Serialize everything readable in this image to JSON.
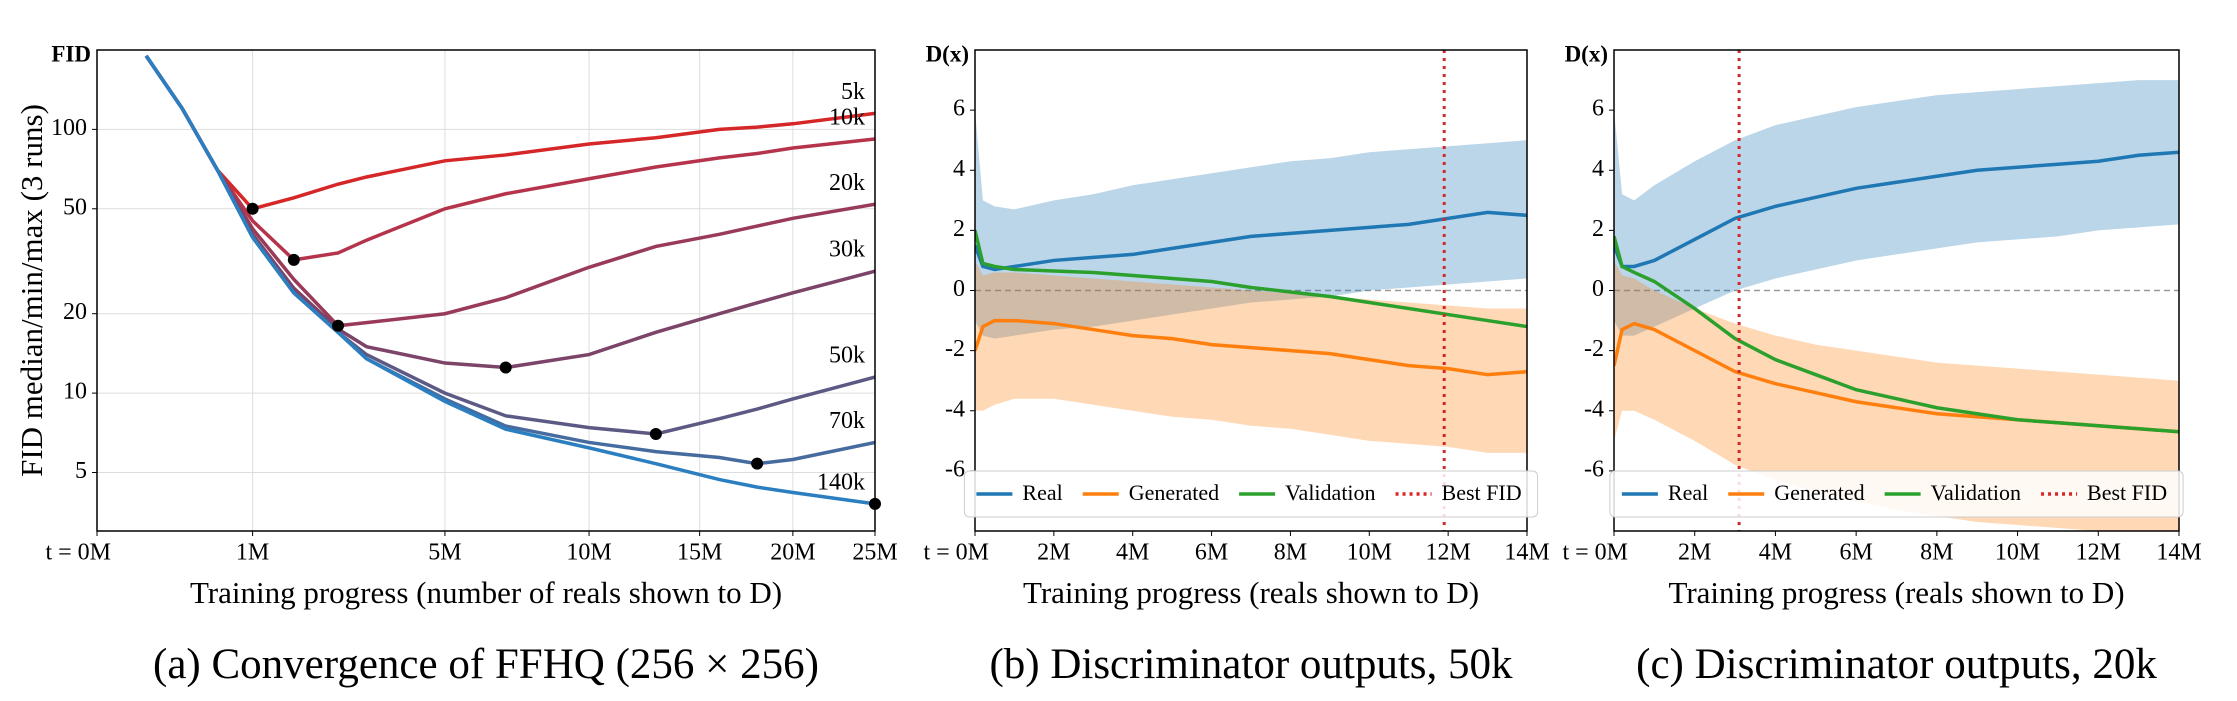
{
  "chart_data": [
    {
      "type": "line",
      "title": "(a) Convergence of FFHQ (256 × 256)",
      "ylabel": "FID median/min/max (3 runs)",
      "xlabel": "Training progress (number of reals shown to D)",
      "y_unit": "FID",
      "xscale": "sqrt",
      "yscale": "log",
      "grid": true,
      "end_labels": true,
      "xlim": [
        0,
        25
      ],
      "ylim": [
        3,
        200
      ],
      "xticks": [
        {
          "value": 0,
          "label": "t = 0M"
        },
        {
          "value": 1,
          "label": "1M"
        },
        {
          "value": 5,
          "label": "5M"
        },
        {
          "value": 10,
          "label": "10M"
        },
        {
          "value": 15,
          "label": "15M"
        },
        {
          "value": 20,
          "label": "20M"
        },
        {
          "value": 25,
          "label": "25M"
        }
      ],
      "yticks": [
        5,
        10,
        20,
        50,
        100
      ],
      "x": [
        0.1,
        0.3,
        0.6,
        1,
        1.6,
        2.4,
        3,
        5,
        6.9,
        10,
        12.9,
        16,
        18,
        20,
        25
      ],
      "series": [
        {
          "name": "5k",
          "color": "#d62728",
          "values": [
            190,
            120,
            70,
            50,
            55,
            62,
            66,
            76,
            80,
            88,
            93,
            100,
            102,
            105,
            115
          ]
        },
        {
          "name": "10k",
          "color": "#b5344c",
          "values": [
            190,
            120,
            70,
            45,
            32,
            34,
            38,
            50,
            57,
            65,
            72,
            78,
            81,
            85,
            92
          ]
        },
        {
          "name": "20k",
          "color": "#993a58",
          "values": [
            190,
            120,
            70,
            42,
            27,
            18,
            18.5,
            20,
            23,
            30,
            36,
            40,
            43,
            46,
            52
          ]
        },
        {
          "name": "30k",
          "color": "#7c4468",
          "values": [
            190,
            120,
            70,
            40,
            25,
            17.5,
            15,
            13,
            12.5,
            14,
            17,
            20,
            22,
            24,
            29
          ]
        },
        {
          "name": "50k",
          "color": "#5c5a84",
          "values": [
            190,
            120,
            70,
            39,
            24,
            17,
            14,
            10,
            8.2,
            7.4,
            7,
            8,
            8.7,
            9.5,
            11.5
          ]
        },
        {
          "name": "70k",
          "color": "#466b9e",
          "values": [
            190,
            120,
            70,
            39,
            24,
            17,
            13.5,
            9.5,
            7.5,
            6.5,
            6,
            5.7,
            5.4,
            5.6,
            6.5
          ]
        },
        {
          "name": "140k",
          "color": "#2b7fc1",
          "values": [
            190,
            120,
            70,
            39,
            24,
            17,
            13.5,
            9.3,
            7.3,
            6.2,
            5.4,
            4.7,
            4.4,
            4.2,
            3.8
          ]
        }
      ],
      "markers": [
        {
          "x": 1,
          "y": 50
        },
        {
          "x": 1.6,
          "y": 32
        },
        {
          "x": 2.4,
          "y": 18
        },
        {
          "x": 6.9,
          "y": 12.5
        },
        {
          "x": 12.9,
          "y": 7
        },
        {
          "x": 18,
          "y": 5.4
        },
        {
          "x": 25,
          "y": 3.8
        }
      ]
    },
    {
      "type": "line",
      "title": "(b) Discriminator outputs, 50k",
      "xlabel": "Training progress (reals shown to D)",
      "y_unit": "D(x)",
      "xscale": "linear",
      "yscale": "linear",
      "grid": false,
      "legend": "lower center",
      "hline": 0,
      "xlim": [
        0,
        14
      ],
      "ylim": [
        -8,
        8
      ],
      "xticks": [
        {
          "value": 0,
          "label": "t = 0M"
        },
        {
          "value": 2,
          "label": "2M"
        },
        {
          "value": 4,
          "label": "4M"
        },
        {
          "value": 6,
          "label": "6M"
        },
        {
          "value": 8,
          "label": "8M"
        },
        {
          "value": 10,
          "label": "10M"
        },
        {
          "value": 12,
          "label": "12M"
        },
        {
          "value": 14,
          "label": "14M"
        }
      ],
      "yticks": [
        -6,
        -4,
        -2,
        0,
        2,
        4,
        6
      ],
      "x": [
        0,
        0.2,
        0.5,
        1,
        2,
        3,
        4,
        5,
        6,
        7,
        8,
        9,
        10,
        11,
        12,
        13,
        14
      ],
      "series": [
        {
          "name": "Real",
          "color": "#1f77b4",
          "values": [
            1.5,
            0.8,
            0.7,
            0.8,
            1.0,
            1.1,
            1.2,
            1.4,
            1.6,
            1.8,
            1.9,
            2.0,
            2.1,
            2.2,
            2.4,
            2.6,
            2.5
          ],
          "upper": [
            6,
            3,
            2.8,
            2.7,
            3,
            3.2,
            3.5,
            3.7,
            3.9,
            4.1,
            4.3,
            4.4,
            4.6,
            4.7,
            4.8,
            4.9,
            5.0
          ],
          "lower": [
            -1,
            -1.5,
            -1.6,
            -1.5,
            -1.3,
            -1.2,
            -1.0,
            -0.8,
            -0.6,
            -0.4,
            -0.3,
            -0.2,
            0,
            0.1,
            0.2,
            0.3,
            0.4
          ]
        },
        {
          "name": "Generated",
          "color": "#ff7f0e",
          "values": [
            -2,
            -1.2,
            -1.0,
            -1.0,
            -1.1,
            -1.3,
            -1.5,
            -1.6,
            -1.8,
            -1.9,
            -2.0,
            -2.1,
            -2.3,
            -2.5,
            -2.6,
            -2.8,
            -2.7
          ],
          "upper": [
            1,
            0.5,
            0.6,
            0.6,
            0.5,
            0.4,
            0.3,
            0.2,
            0.1,
            0,
            -0.1,
            -0.2,
            -0.3,
            -0.4,
            -0.5,
            -0.6,
            -0.6
          ],
          "lower": [
            -4,
            -4,
            -3.8,
            -3.6,
            -3.6,
            -3.8,
            -4.0,
            -4.2,
            -4.3,
            -4.5,
            -4.6,
            -4.8,
            -5.0,
            -5.1,
            -5.2,
            -5.4,
            -5.4
          ]
        },
        {
          "name": "Validation",
          "color": "#2ca02c",
          "values": [
            2.0,
            0.9,
            0.8,
            0.7,
            0.65,
            0.6,
            0.5,
            0.4,
            0.3,
            0.1,
            -0.05,
            -0.2,
            -0.4,
            -0.6,
            -0.8,
            -1.0,
            -1.2
          ]
        }
      ],
      "vline": {
        "name": "Best FID",
        "x": 11.9,
        "color": "#d62728"
      }
    },
    {
      "type": "line",
      "title": "(c) Discriminator outputs, 20k",
      "xlabel": "Training progress (reals shown to D)",
      "y_unit": "D(x)",
      "xscale": "linear",
      "yscale": "linear",
      "grid": false,
      "legend": "lower center",
      "hline": 0,
      "xlim": [
        0,
        14
      ],
      "ylim": [
        -8,
        8
      ],
      "xticks": [
        {
          "value": 0,
          "label": "t = 0M"
        },
        {
          "value": 2,
          "label": "2M"
        },
        {
          "value": 4,
          "label": "4M"
        },
        {
          "value": 6,
          "label": "6M"
        },
        {
          "value": 8,
          "label": "8M"
        },
        {
          "value": 10,
          "label": "10M"
        },
        {
          "value": 12,
          "label": "12M"
        },
        {
          "value": 14,
          "label": "14M"
        }
      ],
      "yticks": [
        -6,
        -4,
        -2,
        0,
        2,
        4,
        6
      ],
      "x": [
        0,
        0.2,
        0.5,
        1,
        2,
        3,
        4,
        5,
        6,
        7,
        8,
        9,
        10,
        11,
        12,
        13,
        14
      ],
      "series": [
        {
          "name": "Real",
          "color": "#1f77b4",
          "values": [
            1.5,
            0.8,
            0.8,
            1.0,
            1.7,
            2.4,
            2.8,
            3.1,
            3.4,
            3.6,
            3.8,
            4.0,
            4.1,
            4.2,
            4.3,
            4.5,
            4.6
          ],
          "upper": [
            6,
            3.2,
            3,
            3.5,
            4.3,
            5,
            5.5,
            5.8,
            6.1,
            6.3,
            6.5,
            6.6,
            6.7,
            6.8,
            6.9,
            7,
            7
          ],
          "lower": [
            -1,
            -1.5,
            -1.5,
            -1.2,
            -0.6,
            0,
            0.4,
            0.7,
            1,
            1.2,
            1.4,
            1.6,
            1.7,
            1.8,
            2,
            2.1,
            2.2
          ]
        },
        {
          "name": "Generated",
          "color": "#ff7f0e",
          "values": [
            -2.5,
            -1.3,
            -1.1,
            -1.3,
            -2.0,
            -2.7,
            -3.1,
            -3.4,
            -3.7,
            -3.9,
            -4.1,
            -4.2,
            -4.3,
            -4.4,
            -4.5,
            -4.6,
            -4.7
          ],
          "upper": [
            1,
            0.5,
            0.4,
            0,
            -0.6,
            -1.1,
            -1.5,
            -1.8,
            -2.0,
            -2.2,
            -2.4,
            -2.5,
            -2.6,
            -2.7,
            -2.8,
            -2.9,
            -3.0
          ],
          "lower": [
            -5,
            -4,
            -4,
            -4.3,
            -5,
            -5.8,
            -6.3,
            -6.7,
            -7,
            -7.3,
            -7.5,
            -7.7,
            -7.8,
            -7.9,
            -8,
            -8,
            -8
          ]
        },
        {
          "name": "Validation",
          "color": "#2ca02c",
          "values": [
            1.8,
            0.8,
            0.6,
            0.3,
            -0.6,
            -1.6,
            -2.3,
            -2.8,
            -3.3,
            -3.6,
            -3.9,
            -4.1,
            -4.3,
            -4.4,
            -4.5,
            -4.6,
            -4.7
          ]
        }
      ],
      "vline": {
        "name": "Best FID",
        "x": 3.1,
        "color": "#d62728"
      }
    }
  ]
}
